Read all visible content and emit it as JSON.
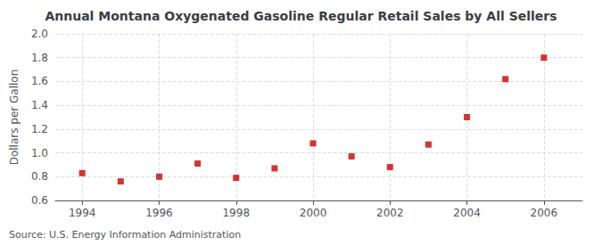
{
  "chart_data": {
    "type": "scatter",
    "title": "Annual Montana Oxygenated Gasoline Regular Retail Sales by All Sellers",
    "ylabel": "Dollars per Gallon",
    "annotations": [
      "Source: U.S. Energy Information Administration"
    ],
    "x": [
      1994,
      1995,
      1996,
      1997,
      1998,
      1999,
      2000,
      2001,
      2002,
      2003,
      2004,
      2005,
      2006
    ],
    "values": [
      0.83,
      0.76,
      0.8,
      0.91,
      0.79,
      0.87,
      1.08,
      0.97,
      0.88,
      1.07,
      1.3,
      1.62,
      1.8
    ],
    "color": "#cc0000",
    "marker": "square",
    "xlim": [
      1993.3,
      2007.0
    ],
    "ylim": [
      0.6,
      2.0
    ],
    "xticks": [
      1994,
      1996,
      1998,
      2000,
      2002,
      2004,
      2006
    ],
    "yticks": [
      0.6,
      0.8,
      {
        "value": 1.0,
        "label": "1.0"
      },
      1.2,
      1.4,
      1.6,
      1.8,
      {
        "value": 2.0,
        "label": "2.0"
      }
    ],
    "grid": true
  }
}
